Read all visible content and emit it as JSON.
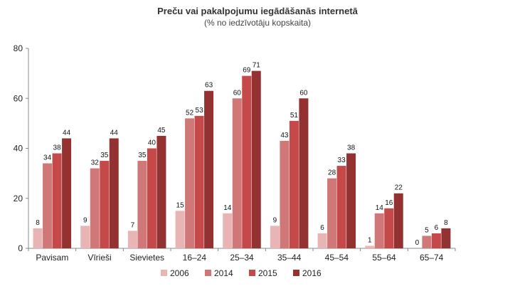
{
  "chart_data": {
    "type": "bar",
    "title": "Preču vai pakalpojumu iegādāšanās internetā",
    "subtitle": "(% no iedzīvotāju kopskaita)",
    "ylim": [
      0,
      80
    ],
    "yticks": [
      0,
      20,
      40,
      60,
      80
    ],
    "categories": [
      "Pavisam",
      "Vīrieši",
      "Sievietes",
      "16–24",
      "25–34",
      "35–44",
      "45–54",
      "55–64",
      "65–74"
    ],
    "series": [
      {
        "name": "2006",
        "color": "#e8b4b4",
        "values": [
          8,
          9,
          7,
          15,
          14,
          9,
          6,
          1,
          0
        ]
      },
      {
        "name": "2014",
        "color": "#d07777",
        "values": [
          34,
          32,
          35,
          52,
          60,
          43,
          28,
          14,
          5
        ]
      },
      {
        "name": "2015",
        "color": "#c54949",
        "values": [
          38,
          35,
          40,
          53,
          69,
          51,
          33,
          16,
          6
        ]
      },
      {
        "name": "2016",
        "color": "#943232",
        "values": [
          44,
          44,
          45,
          63,
          71,
          60,
          38,
          22,
          8
        ]
      }
    ],
    "grid": false,
    "legend": "bottom"
  }
}
